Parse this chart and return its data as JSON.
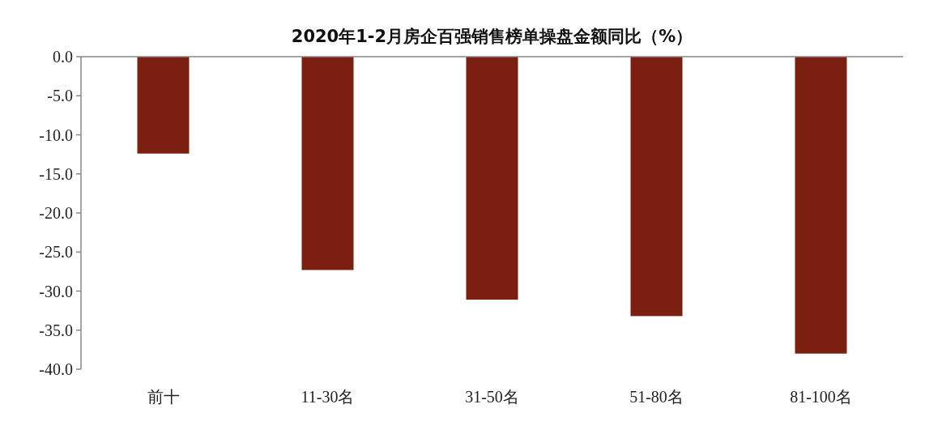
{
  "chart_data": {
    "type": "bar",
    "title": "2020年1-2月房企百强销售榜单操盘金额同比（%）",
    "categories": [
      "前十",
      "11-30名",
      "31-50名",
      "51-80名",
      "81-100名"
    ],
    "values": [
      -12.4,
      -27.3,
      -31.1,
      -33.2,
      -38.0
    ],
    "color": "#7b1f10",
    "ylim": [
      -40,
      0
    ],
    "yticks": [
      {
        "value": 0,
        "label": "0.0"
      },
      {
        "value": -5,
        "label": "-5.0"
      },
      {
        "value": -10,
        "label": "-10.0"
      },
      {
        "value": -15,
        "label": "-15.0"
      },
      {
        "value": -20,
        "label": "-20.0"
      },
      {
        "value": -25,
        "label": "-25.0"
      },
      {
        "value": -30,
        "label": "-30.0"
      },
      {
        "value": -35,
        "label": "-35.0"
      },
      {
        "value": -40,
        "label": "-40.0"
      }
    ]
  }
}
